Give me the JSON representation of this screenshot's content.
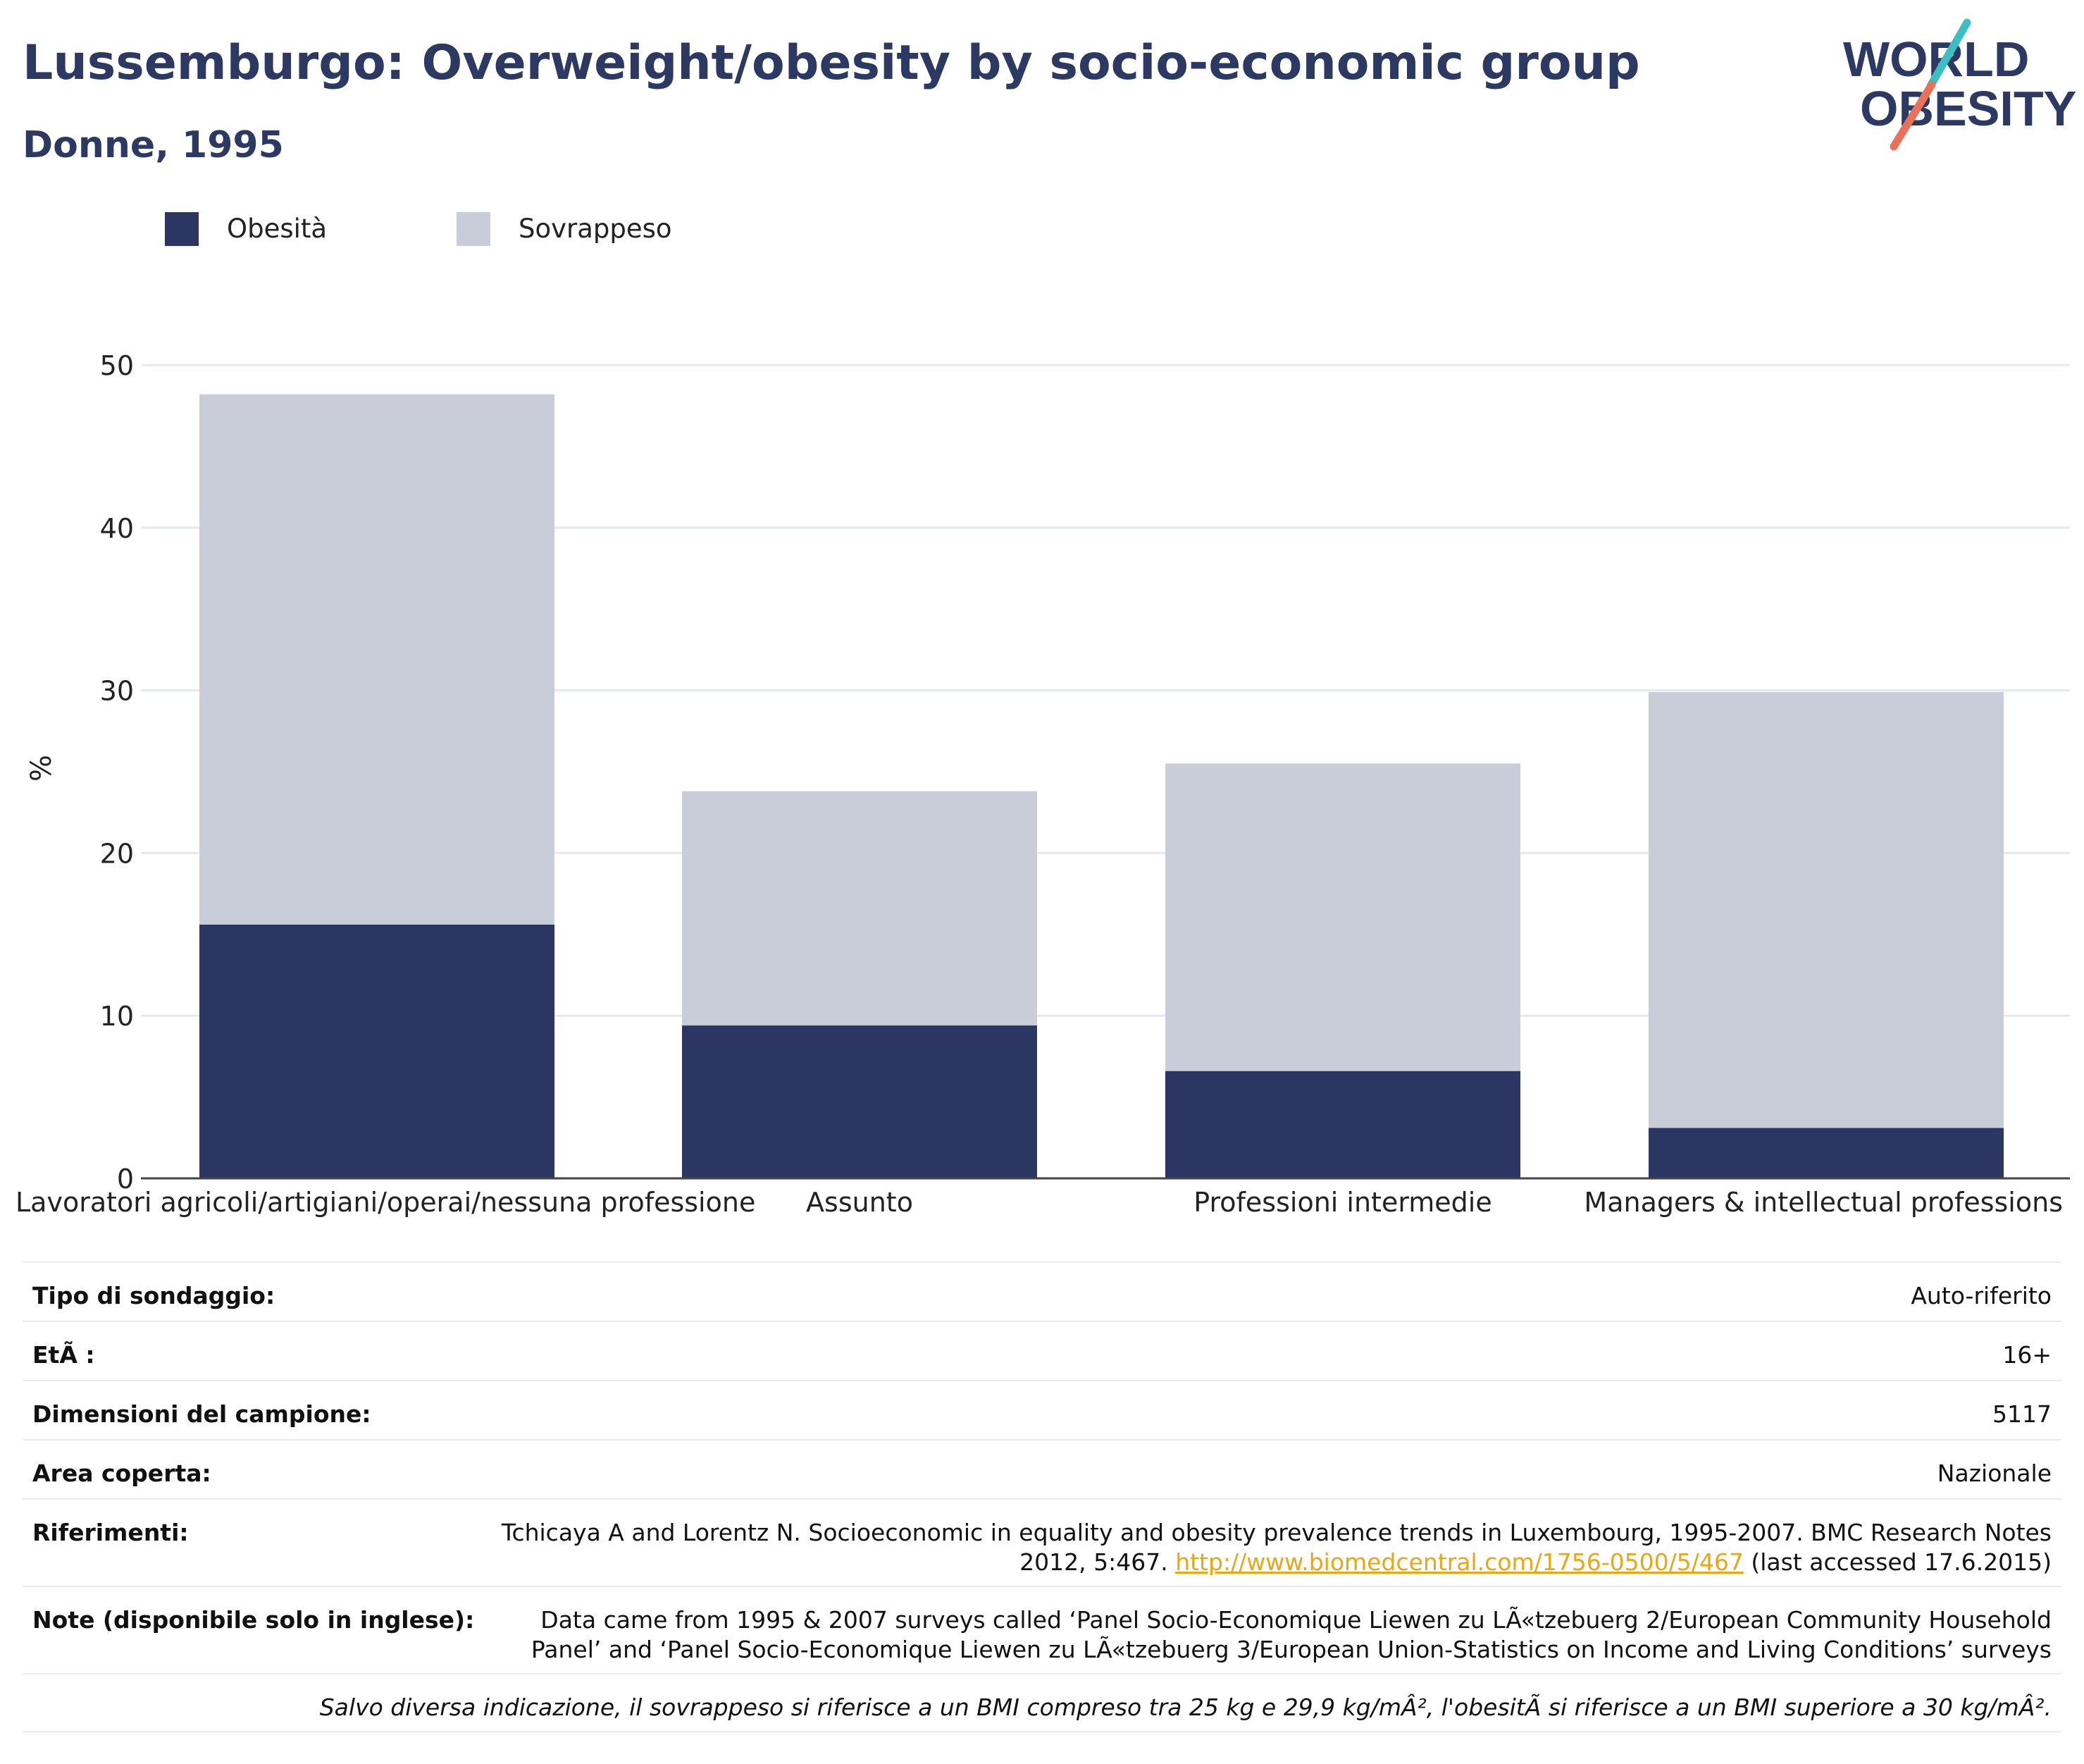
{
  "header": {
    "title": "Lussemburgo: Overweight/obesity by socio-economic group",
    "subtitle": "Donne, 1995"
  },
  "logo": {
    "line1": "WORLD",
    "line2": "OBESITY",
    "colors": {
      "text": "#2c3a63",
      "slash_top": "#3bbfc3",
      "slash_bottom": "#e8715c"
    }
  },
  "legend": [
    {
      "label": "Obesità",
      "color": "#2b3663"
    },
    {
      "label": "Sovrappeso",
      "color": "#c9ccd9"
    }
  ],
  "chart_data": {
    "type": "bar",
    "stacked": true,
    "categories": [
      "Lavoratori agricoli/artigiani/operai/nessuna professione",
      "Assunto",
      "Professioni intermedie",
      "Managers & intellectual professions"
    ],
    "series": [
      {
        "name": "Obesità",
        "color": "#2b3663",
        "values": [
          15.6,
          9.4,
          6.6,
          3.1
        ]
      },
      {
        "name": "Sovrappeso",
        "color": "#c9ccd9",
        "values": [
          32.6,
          14.4,
          18.9,
          26.8
        ]
      }
    ],
    "ylabel": "%",
    "xlabel": "",
    "ylim": [
      0,
      50
    ],
    "yticks": [
      0,
      10,
      20,
      30,
      40,
      50
    ],
    "grid": true,
    "legend_position": "top-left"
  },
  "info_table": [
    {
      "key": "Tipo di sondaggio:",
      "value": "Auto-riferito"
    },
    {
      "key": "EtÃ :",
      "value": "16+"
    },
    {
      "key": "Dimensioni del campione:",
      "value": "5117"
    },
    {
      "key": "Area coperta:",
      "value": "Nazionale"
    }
  ],
  "references": {
    "key": "Riferimenti:",
    "line1": "Tchicaya A and Lorentz N. Socioeconomic in equality and obesity prevalence trends in Luxembourg, 1995-2007. BMC Research Notes",
    "line2_pre": "2012, 5:467. ",
    "link": "http://www.biomedcentral.com/1756-0500/5/467",
    "line2_post": " (last accessed 17.6.2015)"
  },
  "notes": {
    "key": "Note (disponibile solo in inglese):",
    "line1": "Data came from 1995 & 2007 surveys called ‘Panel Socio-Economique Liewen zu LÃ«tzebuerg 2/European Community Household",
    "line2": "Panel’ and ‘Panel Socio-Economique Liewen zu LÃ«tzebuerg 3/European Union-Statistics on Income and Living Conditions’ surveys"
  },
  "footnote": "Salvo diversa indicazione, il sovrappeso si riferisce a un BMI compreso tra 25 kg e 29,9 kg/mÂ², l'obesitÃ  si riferisce a un BMI superiore a 30 kg/mÂ²."
}
